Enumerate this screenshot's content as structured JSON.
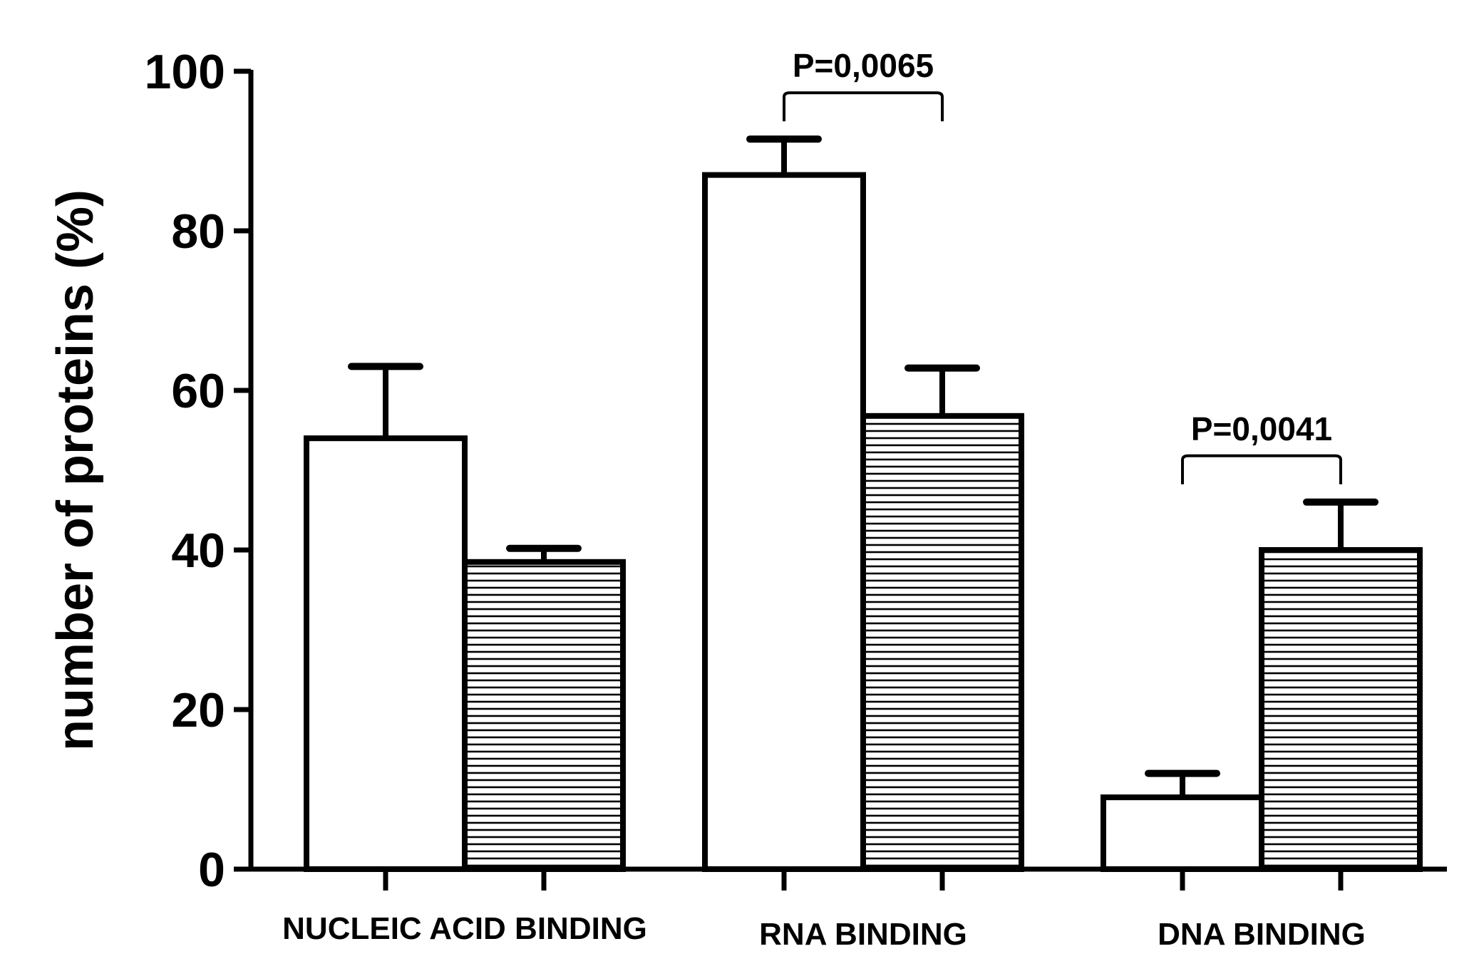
{
  "chart_data": {
    "type": "bar",
    "title": "",
    "xlabel": "",
    "ylabel": "number of proteins (%)",
    "ylim": [
      0,
      100
    ],
    "yticks": [
      "0",
      "20",
      "40",
      "60",
      "80",
      "100"
    ],
    "grid": false,
    "legend": "none",
    "categories": [
      "NUCLEIC ACID BINDING",
      "RNA BINDING",
      "DNA BINDING"
    ],
    "series": [
      {
        "pattern": "open",
        "fill": "#ffffff",
        "values": [
          54,
          87,
          9
        ],
        "errors": [
          9,
          4.5,
          3
        ]
      },
      {
        "pattern": "horizontal-hatch",
        "fill": "#ffffff",
        "values": [
          38.5,
          56.8,
          40
        ],
        "errors": [
          1.7,
          6,
          6
        ]
      }
    ],
    "annotations": [
      {
        "category_index": 1,
        "text": "P=0,0065"
      },
      {
        "category_index": 2,
        "text": "P=0,0041"
      }
    ]
  }
}
